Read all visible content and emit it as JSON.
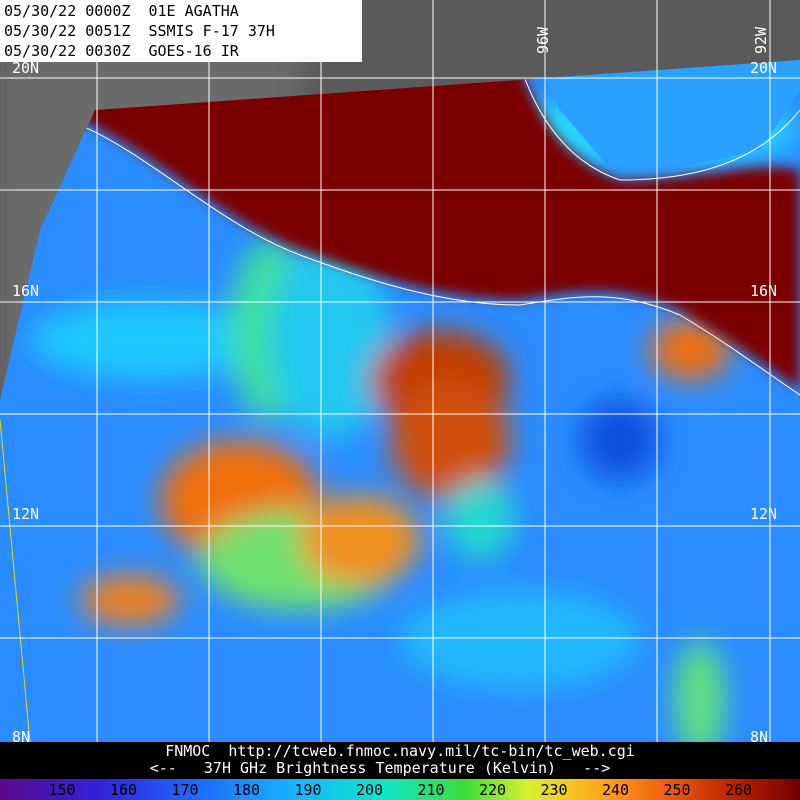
{
  "header": {
    "lines": [
      "05/30/22 0000Z  01E AGATHA",
      "05/30/22 0051Z  SSMIS F-17 37H",
      "05/30/22 0030Z  GOES-16 IR"
    ]
  },
  "lat_labels": [
    "20N",
    "16N",
    "12N",
    "8N"
  ],
  "lon_labels": [
    "96W",
    "92W"
  ],
  "footer": {
    "source": "FNMOC  http://tcweb.fnmoc.navy.mil/tc-bin/tc_web.cgi",
    "caption": "<--   37H GHz Brightness Temperature (Kelvin)   -->"
  },
  "colorbar": {
    "ticks": [
      150,
      160,
      170,
      180,
      190,
      200,
      210,
      220,
      230,
      240,
      250,
      260
    ]
  }
}
